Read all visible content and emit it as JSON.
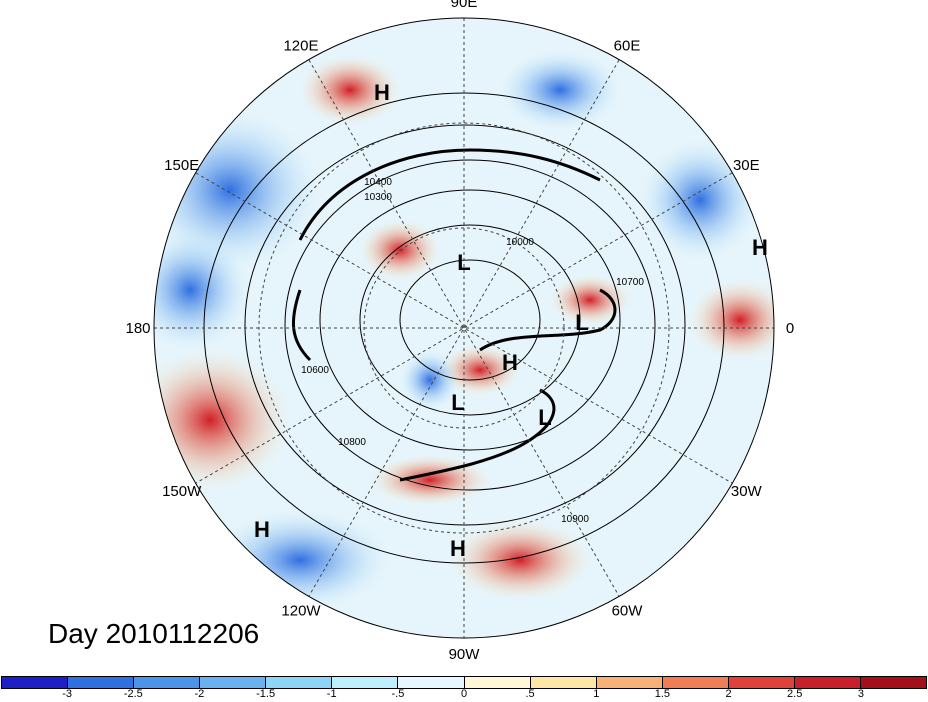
{
  "map": {
    "longitude_labels": [
      {
        "text": "90E",
        "angle": 90
      },
      {
        "text": "60E",
        "angle": 60
      },
      {
        "text": "30E",
        "angle": 30
      },
      {
        "text": "0",
        "angle": 0
      },
      {
        "text": "30W",
        "angle": -30
      },
      {
        "text": "60W",
        "angle": -60
      },
      {
        "text": "90W",
        "angle": -90
      },
      {
        "text": "120W",
        "angle": -120
      },
      {
        "text": "150W",
        "angle": -150
      },
      {
        "text": "180",
        "angle": 180
      },
      {
        "text": "150E",
        "angle": 150
      },
      {
        "text": "120E",
        "angle": 120
      }
    ],
    "pressure_centers": [
      "H",
      "L",
      "L",
      "H",
      "L",
      "L",
      "H",
      "H",
      "H"
    ],
    "contour_labels": [
      "10000",
      "10300",
      "10400",
      "10600",
      "10700",
      "10800",
      "10900"
    ],
    "colors": {
      "ocean_neutral": "#e6f4fb",
      "positive_anomaly": "#e0372f",
      "negative_anomaly": "#3a7fd9",
      "contour": "#000000"
    }
  },
  "date_label": "Day 2010112206",
  "colorbar": {
    "colors": [
      "#1f1fc7",
      "#2f6fe0",
      "#4c94ea",
      "#6ab1f2",
      "#8ed4f7",
      "#bfeefd",
      "#e6f8fd",
      "#fff7d8",
      "#fde6a8",
      "#f7b27a",
      "#ef7e56",
      "#e0413b",
      "#c8202a",
      "#a50f1a"
    ],
    "tick_labels": [
      "-3",
      "-2.5",
      "-2",
      "-1.5",
      "-1",
      "-.5",
      "0",
      ".5",
      "1",
      "1.5",
      "2",
      "2.5",
      "3"
    ]
  }
}
